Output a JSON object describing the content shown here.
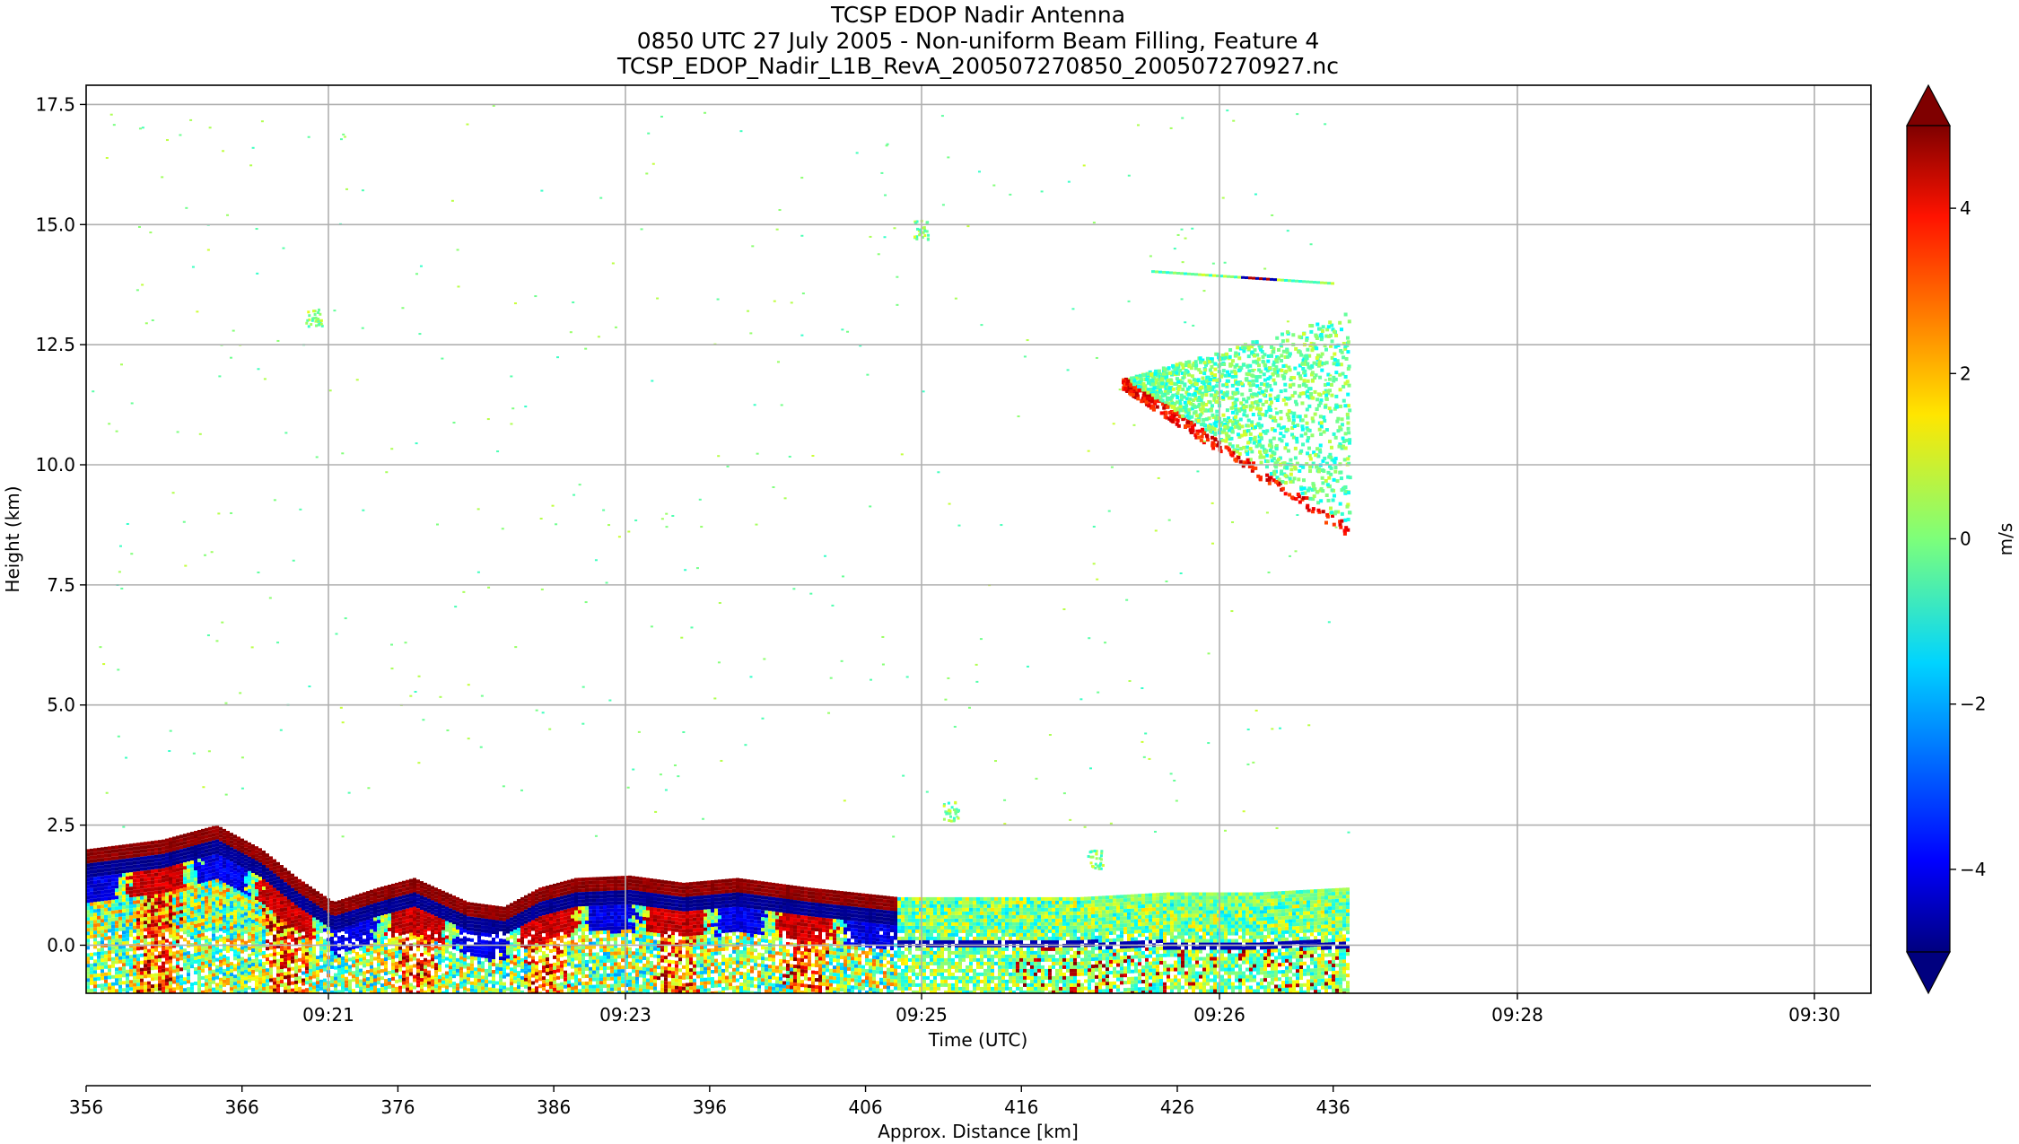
{
  "title_lines": [
    "TCSP EDOP Nadir Antenna",
    "0850 UTC 27 July 2005 - Non-uniform Beam Filling, Feature 4",
    "TCSP_EDOP_Nadir_L1B_RevA_200507270850_200507270927.nc"
  ],
  "chart_data": {
    "type": "heatmap",
    "title": "TCSP EDOP Nadir Antenna",
    "subtitle": "0850 UTC 27 July 2005 - Non-uniform Beam Filling, Feature 4",
    "filename": "TCSP_EDOP_Nadir_L1B_RevA_200507270850_200507270927.nc",
    "xlabel": "Time (UTC)",
    "ylabel": "Height (km)",
    "x_ticks": [
      "09:21",
      "09:23",
      "09:25",
      "09:26",
      "09:28",
      "09:30"
    ],
    "y_ticks": [
      "0.0",
      "2.5",
      "5.0",
      "7.5",
      "10.0",
      "12.5",
      "15.0",
      "17.5"
    ],
    "y_tick_values": [
      0,
      2.5,
      5,
      7.5,
      10,
      12.5,
      15,
      17.5
    ],
    "ylim": [
      -1.0,
      17.9
    ],
    "grid": true,
    "secondary_x": {
      "label": "Approx. Distance [km]",
      "ticks": [
        "356",
        "366",
        "376",
        "386",
        "396",
        "406",
        "416",
        "426",
        "436"
      ],
      "tick_values": [
        356,
        366,
        376,
        386,
        396,
        406,
        416,
        426,
        436
      ],
      "xlim": [
        356,
        470.5
      ]
    },
    "colorbar": {
      "label": "m/s",
      "ticks": [
        "−4",
        "−2",
        "0",
        "2",
        "4"
      ],
      "tick_values": [
        -4,
        -2,
        0,
        2,
        4
      ],
      "range": [
        -5,
        5
      ],
      "colormap": "jet",
      "extend": "both"
    },
    "features": [
      {
        "type": "boundary-layer",
        "height_km": [
          -1.0,
          2.5
        ]
      },
      {
        "type": "upper-cloud",
        "height_km": [
          8.5,
          13.2
        ]
      },
      {
        "type": "thin-layer",
        "height_km": 14.0
      }
    ],
    "data_end_distance_km": 437
  }
}
